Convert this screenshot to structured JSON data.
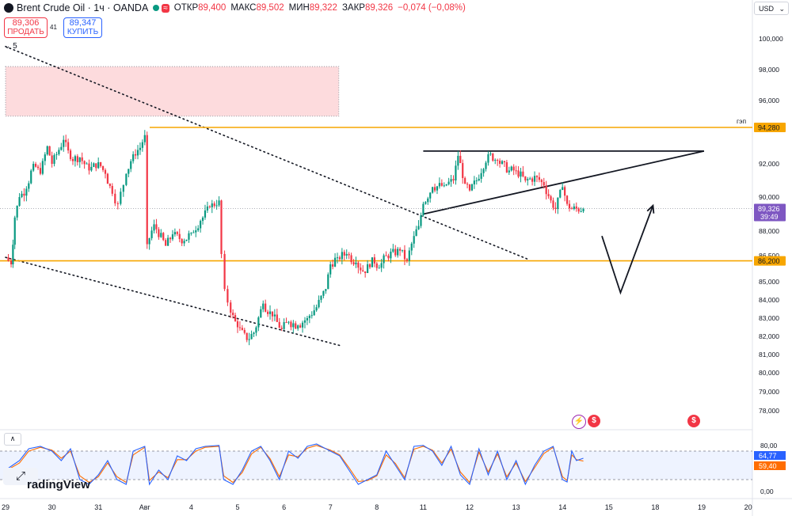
{
  "header": {
    "symbol": "Brent Crude Oil · 1ч · OANDA",
    "open_label": "ОТКР",
    "open": "89,400",
    "high_label": "МАКС",
    "high": "89,502",
    "low_label": "МИН",
    "low": "89,322",
    "close_label": "ЗАКР",
    "close": "89,326",
    "change": "−0,074 (−0,08%)",
    "wave_icon": "≈"
  },
  "trade": {
    "sell_price": "89,306",
    "sell_label": "ПРОДАТЬ",
    "spread": "41",
    "buy_price": "89,347",
    "buy_label": "КУПИТЬ"
  },
  "collapse_label": "5",
  "currency": "USD",
  "branding": {
    "logo_glyph": "⤢",
    "text": "radingView"
  },
  "indicator_toggle": "∧",
  "events": [
    "⚡",
    "$",
    "$"
  ],
  "chart_data": {
    "type": "candlestick",
    "price_axis": {
      "min": 77,
      "max": 101,
      "ticks": [
        {
          "value": 100,
          "label": "100,000"
        },
        {
          "value": 98,
          "label": "98,000"
        },
        {
          "value": 96,
          "label": "96,000"
        },
        {
          "value": 92,
          "label": "92,000"
        },
        {
          "value": 90,
          "label": "90,000"
        },
        {
          "value": 88,
          "label": "88,000"
        },
        {
          "value": 86.5,
          "label": "86,500"
        },
        {
          "value": 85,
          "label": "85,000"
        },
        {
          "value": 84,
          "label": "84,000"
        },
        {
          "value": 83,
          "label": "83,000"
        },
        {
          "value": 82,
          "label": "82,000"
        },
        {
          "value": 81,
          "label": "81,000"
        },
        {
          "value": 80,
          "label": "80,000"
        },
        {
          "value": 79,
          "label": "79,000"
        },
        {
          "value": 78,
          "label": "78,000"
        }
      ]
    },
    "x_labels": [
      {
        "i": 0,
        "label": "29"
      },
      {
        "i": 1,
        "label": "30"
      },
      {
        "i": 2,
        "label": "31"
      },
      {
        "i": 3,
        "label": "Авг"
      },
      {
        "i": 4,
        "label": "4"
      },
      {
        "i": 5,
        "label": "5"
      },
      {
        "i": 6,
        "label": "6"
      },
      {
        "i": 7,
        "label": "7"
      },
      {
        "i": 8,
        "label": "8"
      },
      {
        "i": 9,
        "label": "11"
      },
      {
        "i": 10,
        "label": "12"
      },
      {
        "i": 11,
        "label": "13"
      },
      {
        "i": 12,
        "label": "14"
      },
      {
        "i": 13,
        "label": "15"
      },
      {
        "i": 14,
        "label": "18"
      },
      {
        "i": 15,
        "label": "19"
      },
      {
        "i": 16,
        "label": "20"
      }
    ],
    "price_path": [
      [
        0,
        86.4
      ],
      [
        0.12,
        86.0
      ],
      [
        0.2,
        88.8
      ],
      [
        0.3,
        90.0
      ],
      [
        0.45,
        90.5
      ],
      [
        0.6,
        92.0
      ],
      [
        0.75,
        91.4
      ],
      [
        0.9,
        93.1
      ],
      [
        1.0,
        92.0
      ],
      [
        1.1,
        92.6
      ],
      [
        1.25,
        93.5
      ],
      [
        1.4,
        92.3
      ],
      [
        1.6,
        92.4
      ],
      [
        1.8,
        91.6
      ],
      [
        2.0,
        92.1
      ],
      [
        2.15,
        91.4
      ],
      [
        2.3,
        90.2
      ],
      [
        2.42,
        89.6
      ],
      [
        2.6,
        91.4
      ],
      [
        2.75,
        92.6
      ],
      [
        2.9,
        93.0
      ],
      [
        3.0,
        93.8
      ],
      [
        3.05,
        87.2
      ],
      [
        3.2,
        88.4
      ],
      [
        3.45,
        87.1
      ],
      [
        3.6,
        87.8
      ],
      [
        3.85,
        87.4
      ],
      [
        4.0,
        87.9
      ],
      [
        4.2,
        88.6
      ],
      [
        4.4,
        89.4
      ],
      [
        4.6,
        89.8
      ],
      [
        4.65,
        86.6
      ],
      [
        4.72,
        84.6
      ],
      [
        4.85,
        83.3
      ],
      [
        5.0,
        82.5
      ],
      [
        5.2,
        81.8
      ],
      [
        5.35,
        82.2
      ],
      [
        5.55,
        83.8
      ],
      [
        5.75,
        83.1
      ],
      [
        5.95,
        82.4
      ],
      [
        6.1,
        82.8
      ],
      [
        6.3,
        82.6
      ],
      [
        6.5,
        83.0
      ],
      [
        6.7,
        83.6
      ],
      [
        6.9,
        84.6
      ],
      [
        7.0,
        86.0
      ],
      [
        7.15,
        86.4
      ],
      [
        7.35,
        86.6
      ],
      [
        7.55,
        86.1
      ],
      [
        7.75,
        85.5
      ],
      [
        7.9,
        86.4
      ],
      [
        8.05,
        85.8
      ],
      [
        8.2,
        86.5
      ],
      [
        8.5,
        86.8
      ],
      [
        8.65,
        86.2
      ],
      [
        8.8,
        87.7
      ],
      [
        8.9,
        88.3
      ],
      [
        9.0,
        89.6
      ],
      [
        9.2,
        90.6
      ],
      [
        9.45,
        90.7
      ],
      [
        9.65,
        91.0
      ],
      [
        9.75,
        92.5
      ],
      [
        9.9,
        90.8
      ],
      [
        10.0,
        90.4
      ],
      [
        10.15,
        91.0
      ],
      [
        10.4,
        92.6
      ],
      [
        10.6,
        92.2
      ],
      [
        10.85,
        91.6
      ],
      [
        11.0,
        91.6
      ],
      [
        11.2,
        91.0
      ],
      [
        11.45,
        91.2
      ],
      [
        11.6,
        90.7
      ],
      [
        11.75,
        89.8
      ],
      [
        11.85,
        89.3
      ],
      [
        12.0,
        90.6
      ],
      [
        12.1,
        89.6
      ],
      [
        12.2,
        89.3
      ],
      [
        12.45,
        89.3
      ]
    ],
    "levels": [
      {
        "price": 94.28,
        "label": "94,280",
        "note": "гэп",
        "color": "#f7a600"
      },
      {
        "price": 86.2,
        "label": "86,200",
        "color": "#f7a600"
      },
      {
        "price": 89.326,
        "label": "89,326",
        "sublabel": "39:49",
        "color": "#7e57c2"
      }
    ],
    "zone": {
      "from_i": 0,
      "to_i": 7.18,
      "top": 98.2,
      "bottom": 95.0,
      "color": "#f23645"
    },
    "trendlines": [
      {
        "from": [
          0,
          99.5
        ],
        "to": [
          11.25,
          86.3
        ],
        "style": "dotted"
      },
      {
        "from": [
          0,
          86.4
        ],
        "to": [
          7.2,
          81.5
        ],
        "style": "dotted"
      },
      {
        "from": [
          9.0,
          92.8
        ],
        "to": [
          15.05,
          92.8
        ],
        "style": "solid"
      },
      {
        "from": [
          9.0,
          89.0
        ],
        "to": [
          15.05,
          92.8
        ],
        "style": "solid"
      }
    ],
    "projection": [
      [
        12.85,
        87.7
      ],
      [
        13.25,
        84.4
      ],
      [
        13.95,
        89.5
      ]
    ],
    "oscillator": {
      "type": "stochastic",
      "axis": [
        {
          "value": 80,
          "label": "80,00"
        },
        {
          "value": 0,
          "label": "0,00"
        }
      ],
      "band": [
        20,
        80
      ],
      "k_label": "64,77",
      "d_label": "59,40",
      "k_color": "#2962ff",
      "d_color": "#ff6d00",
      "k_path": [
        [
          0,
          40
        ],
        [
          0.3,
          60
        ],
        [
          0.5,
          85
        ],
        [
          0.75,
          90
        ],
        [
          1.0,
          80
        ],
        [
          1.2,
          60
        ],
        [
          1.4,
          85
        ],
        [
          1.6,
          20
        ],
        [
          1.8,
          10
        ],
        [
          2.0,
          30
        ],
        [
          2.2,
          60
        ],
        [
          2.4,
          20
        ],
        [
          2.6,
          10
        ],
        [
          2.75,
          80
        ],
        [
          3.0,
          90
        ],
        [
          3.1,
          10
        ],
        [
          3.3,
          40
        ],
        [
          3.5,
          20
        ],
        [
          3.7,
          70
        ],
        [
          3.9,
          60
        ],
        [
          4.1,
          85
        ],
        [
          4.3,
          90
        ],
        [
          4.6,
          92
        ],
        [
          4.7,
          20
        ],
        [
          4.9,
          10
        ],
        [
          5.1,
          40
        ],
        [
          5.3,
          80
        ],
        [
          5.5,
          90
        ],
        [
          5.7,
          60
        ],
        [
          5.9,
          20
        ],
        [
          6.1,
          80
        ],
        [
          6.3,
          65
        ],
        [
          6.5,
          90
        ],
        [
          6.7,
          95
        ],
        [
          7.0,
          80
        ],
        [
          7.2,
          70
        ],
        [
          7.4,
          40
        ],
        [
          7.6,
          10
        ],
        [
          7.8,
          20
        ],
        [
          8.0,
          30
        ],
        [
          8.2,
          80
        ],
        [
          8.4,
          50
        ],
        [
          8.6,
          20
        ],
        [
          8.8,
          90
        ],
        [
          9.0,
          92
        ],
        [
          9.2,
          80
        ],
        [
          9.4,
          50
        ],
        [
          9.6,
          90
        ],
        [
          9.8,
          30
        ],
        [
          10.0,
          10
        ],
        [
          10.2,
          85
        ],
        [
          10.4,
          30
        ],
        [
          10.6,
          80
        ],
        [
          10.8,
          20
        ],
        [
          11.0,
          60
        ],
        [
          11.2,
          10
        ],
        [
          11.4,
          50
        ],
        [
          11.6,
          80
        ],
        [
          11.8,
          90
        ],
        [
          12.0,
          20
        ],
        [
          12.1,
          15
        ],
        [
          12.2,
          80
        ],
        [
          12.3,
          60
        ],
        [
          12.45,
          65
        ]
      ],
      "d_path": [
        [
          0,
          38
        ],
        [
          0.3,
          55
        ],
        [
          0.5,
          80
        ],
        [
          0.75,
          88
        ],
        [
          1.0,
          82
        ],
        [
          1.2,
          65
        ],
        [
          1.4,
          80
        ],
        [
          1.6,
          28
        ],
        [
          1.8,
          14
        ],
        [
          2.0,
          26
        ],
        [
          2.2,
          55
        ],
        [
          2.4,
          26
        ],
        [
          2.6,
          14
        ],
        [
          2.75,
          72
        ],
        [
          3.0,
          88
        ],
        [
          3.1,
          18
        ],
        [
          3.3,
          36
        ],
        [
          3.5,
          24
        ],
        [
          3.7,
          62
        ],
        [
          3.9,
          62
        ],
        [
          4.1,
          80
        ],
        [
          4.3,
          88
        ],
        [
          4.6,
          90
        ],
        [
          4.7,
          28
        ],
        [
          4.9,
          14
        ],
        [
          5.1,
          35
        ],
        [
          5.3,
          74
        ],
        [
          5.5,
          88
        ],
        [
          5.7,
          64
        ],
        [
          5.9,
          26
        ],
        [
          6.1,
          72
        ],
        [
          6.3,
          68
        ],
        [
          6.5,
          86
        ],
        [
          6.7,
          92
        ],
        [
          7.0,
          82
        ],
        [
          7.2,
          72
        ],
        [
          7.4,
          45
        ],
        [
          7.6,
          16
        ],
        [
          7.8,
          18
        ],
        [
          8.0,
          28
        ],
        [
          8.2,
          72
        ],
        [
          8.4,
          54
        ],
        [
          8.6,
          24
        ],
        [
          8.8,
          84
        ],
        [
          9.0,
          90
        ],
        [
          9.2,
          82
        ],
        [
          9.4,
          55
        ],
        [
          9.6,
          84
        ],
        [
          9.8,
          36
        ],
        [
          10.0,
          14
        ],
        [
          10.2,
          78
        ],
        [
          10.4,
          36
        ],
        [
          10.6,
          74
        ],
        [
          10.8,
          26
        ],
        [
          11.0,
          55
        ],
        [
          11.2,
          16
        ],
        [
          11.4,
          45
        ],
        [
          11.6,
          75
        ],
        [
          11.8,
          88
        ],
        [
          12.0,
          26
        ],
        [
          12.1,
          18
        ],
        [
          12.2,
          72
        ],
        [
          12.3,
          62
        ],
        [
          12.45,
          59
        ]
      ]
    }
  }
}
